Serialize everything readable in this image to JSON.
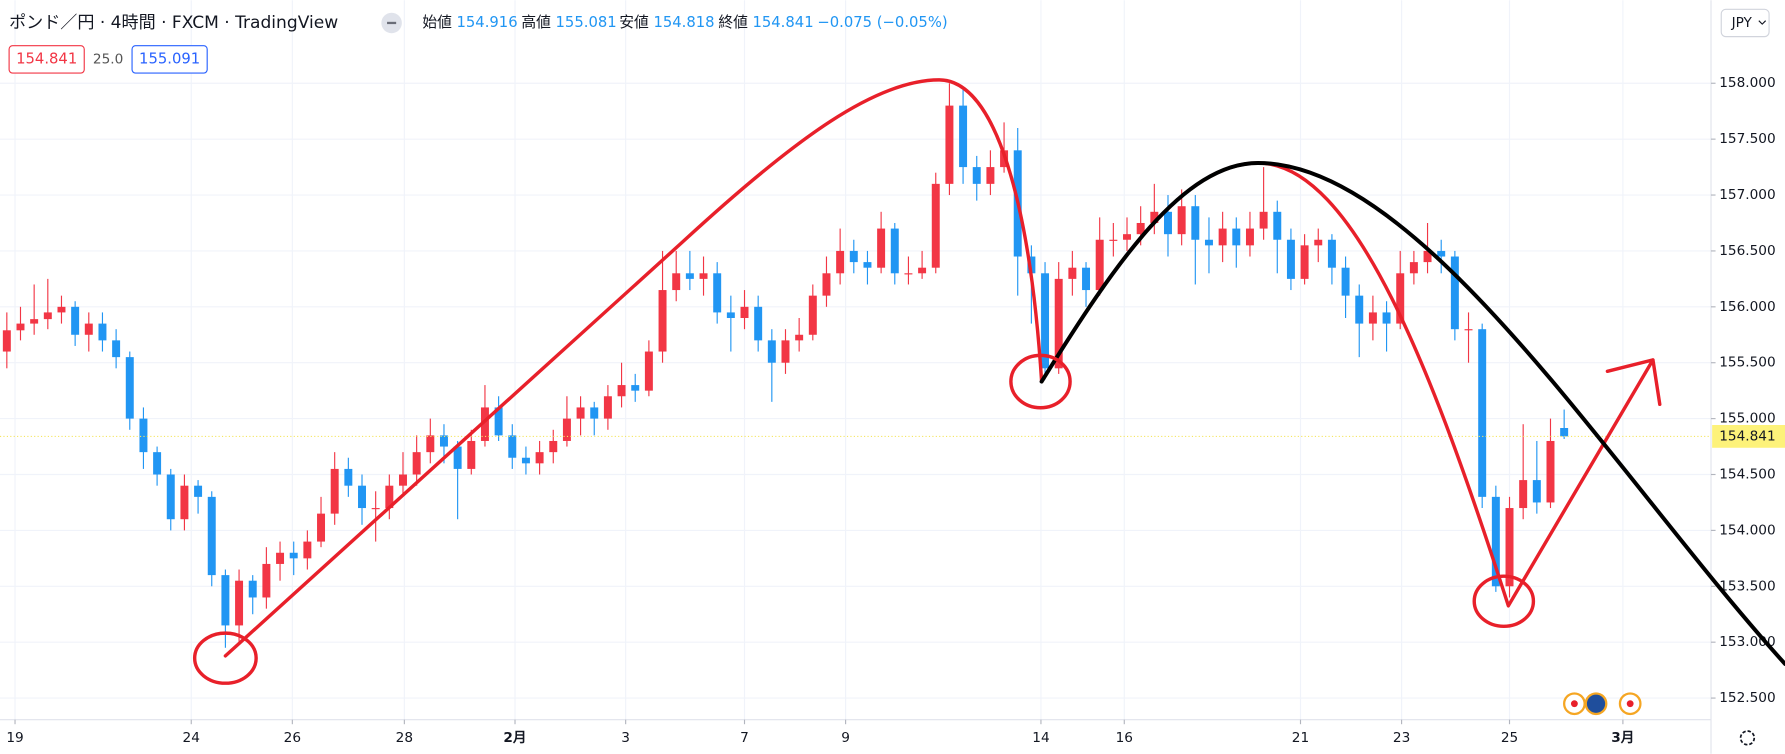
{
  "header": {
    "symbol": "ポンド／円 · 4時間 · FXCM · TradingView",
    "open_label": "始値",
    "high_label": "高値",
    "low_label": "安値",
    "close_label": "終値",
    "change": "−0.075 (−0.05%)",
    "spread": "25.0",
    "ask": 155.091,
    "currency": "JPY"
  },
  "chart_data": {
    "type": "candlestick",
    "up_color": "#f23645",
    "down_color": "#2196f3",
    "grid": true,
    "xlim": [
      -0.5,
      124.75
    ],
    "ylim": [
      152.307,
      158.743
    ],
    "xticks": [
      {
        "value": 0.6,
        "label": "19"
      },
      {
        "value": 13.5,
        "label": "24"
      },
      {
        "value": 20.9,
        "label": "26"
      },
      {
        "value": 29.1,
        "label": "28"
      },
      {
        "value": 37.2,
        "label": "2月"
      },
      {
        "value": 45.3,
        "label": "3"
      },
      {
        "value": 54,
        "label": "7"
      },
      {
        "value": 61.4,
        "label": "9"
      },
      {
        "value": 75.7,
        "label": "14"
      },
      {
        "value": 81.8,
        "label": "16"
      },
      {
        "value": 94.7,
        "label": "21"
      },
      {
        "value": 102.1,
        "label": "23"
      },
      {
        "value": 110,
        "label": "25"
      },
      {
        "value": 118.3,
        "label": "3月"
      }
    ],
    "yticks": [
      {
        "value": 152.5,
        "label": "152.500"
      },
      {
        "value": 153,
        "label": "153.000"
      },
      {
        "value": 153.5,
        "label": "153.500"
      },
      {
        "value": 154,
        "label": "154.000"
      },
      {
        "value": 154.5,
        "label": "154.500"
      },
      {
        "value": 155,
        "label": "155.000"
      },
      {
        "value": 155.5,
        "label": "155.500"
      },
      {
        "value": 156,
        "label": "156.000"
      },
      {
        "value": 156.5,
        "label": "156.500"
      },
      {
        "value": 157,
        "label": "157.000"
      },
      {
        "value": 157.5,
        "label": "157.500"
      },
      {
        "value": 158,
        "label": "158.000"
      }
    ],
    "ohlc": [
      [
        155.6,
        155.95,
        155.45,
        155.79
      ],
      [
        155.79,
        156.0,
        155.7,
        155.85
      ],
      [
        155.85,
        156.2,
        155.75,
        155.89
      ],
      [
        155.89,
        156.25,
        155.8,
        155.95
      ],
      [
        155.95,
        156.1,
        155.85,
        156.0
      ],
      [
        156.0,
        156.05,
        155.65,
        155.75
      ],
      [
        155.75,
        155.95,
        155.6,
        155.85
      ],
      [
        155.85,
        155.95,
        155.6,
        155.7
      ],
      [
        155.7,
        155.8,
        155.45,
        155.55
      ],
      [
        155.55,
        155.6,
        154.9,
        155.0
      ],
      [
        155.0,
        155.1,
        154.55,
        154.7
      ],
      [
        154.7,
        154.75,
        154.4,
        154.5
      ],
      [
        154.5,
        154.55,
        154.0,
        154.1
      ],
      [
        154.1,
        154.5,
        154.0,
        154.4
      ],
      [
        154.4,
        154.45,
        154.15,
        154.3
      ],
      [
        154.3,
        154.35,
        153.5,
        153.6
      ],
      [
        153.6,
        153.65,
        152.95,
        153.15
      ],
      [
        153.15,
        153.65,
        153.0,
        153.55
      ],
      [
        153.55,
        153.6,
        153.25,
        153.4
      ],
      [
        153.4,
        153.85,
        153.3,
        153.7
      ],
      [
        153.7,
        153.9,
        153.55,
        153.8
      ],
      [
        153.8,
        153.9,
        153.6,
        153.75
      ],
      [
        153.75,
        154.0,
        153.65,
        153.9
      ],
      [
        153.9,
        154.3,
        153.85,
        154.15
      ],
      [
        154.15,
        154.7,
        154.05,
        154.55
      ],
      [
        154.55,
        154.65,
        154.3,
        154.4
      ],
      [
        154.4,
        154.5,
        154.05,
        154.2
      ],
      [
        154.2,
        154.35,
        153.9,
        154.2
      ],
      [
        154.2,
        154.5,
        154.1,
        154.4
      ],
      [
        154.4,
        154.7,
        154.3,
        154.5
      ],
      [
        154.5,
        154.85,
        154.4,
        154.7
      ],
      [
        154.7,
        155.0,
        154.6,
        154.85
      ],
      [
        154.85,
        154.95,
        154.6,
        154.75
      ],
      [
        154.75,
        154.8,
        154.1,
        154.55
      ],
      [
        154.55,
        154.9,
        154.5,
        154.8
      ],
      [
        154.8,
        155.3,
        154.75,
        155.1
      ],
      [
        155.1,
        155.2,
        154.8,
        154.85
      ],
      [
        154.85,
        154.95,
        154.55,
        154.65
      ],
      [
        154.65,
        154.75,
        154.5,
        154.6
      ],
      [
        154.6,
        154.8,
        154.5,
        154.7
      ],
      [
        154.7,
        154.9,
        154.6,
        154.8
      ],
      [
        154.8,
        155.2,
        154.75,
        155.0
      ],
      [
        155.0,
        155.2,
        154.85,
        155.1
      ],
      [
        155.1,
        155.15,
        154.85,
        155.0
      ],
      [
        155.0,
        155.3,
        154.9,
        155.2
      ],
      [
        155.2,
        155.5,
        155.1,
        155.3
      ],
      [
        155.3,
        155.4,
        155.15,
        155.25
      ],
      [
        155.25,
        155.7,
        155.2,
        155.6
      ],
      [
        155.6,
        156.5,
        155.5,
        156.15
      ],
      [
        156.15,
        156.5,
        156.05,
        156.3
      ],
      [
        156.3,
        156.5,
        156.15,
        156.25
      ],
      [
        156.25,
        156.45,
        156.1,
        156.3
      ],
      [
        156.3,
        156.4,
        155.85,
        155.95
      ],
      [
        155.95,
        156.1,
        155.6,
        155.9
      ],
      [
        155.9,
        156.15,
        155.8,
        156.0
      ],
      [
        156.0,
        156.1,
        155.6,
        155.7
      ],
      [
        155.7,
        155.8,
        155.15,
        155.5
      ],
      [
        155.5,
        155.8,
        155.4,
        155.7
      ],
      [
        155.7,
        155.9,
        155.6,
        155.75
      ],
      [
        155.75,
        156.2,
        155.7,
        156.1
      ],
      [
        156.1,
        156.45,
        156.0,
        156.3
      ],
      [
        156.3,
        156.7,
        156.2,
        156.5
      ],
      [
        156.5,
        156.6,
        156.3,
        156.4
      ],
      [
        156.4,
        156.5,
        156.2,
        156.35
      ],
      [
        156.35,
        156.85,
        156.3,
        156.7
      ],
      [
        156.7,
        156.75,
        156.2,
        156.3
      ],
      [
        156.3,
        156.45,
        156.2,
        156.3
      ],
      [
        156.3,
        156.5,
        156.25,
        156.35
      ],
      [
        156.35,
        157.2,
        156.3,
        157.1
      ],
      [
        157.1,
        158.0,
        157.0,
        157.8
      ],
      [
        157.8,
        157.95,
        157.1,
        157.25
      ],
      [
        157.25,
        157.35,
        156.95,
        157.1
      ],
      [
        157.1,
        157.4,
        157.0,
        157.25
      ],
      [
        157.25,
        157.65,
        157.2,
        157.4
      ],
      [
        157.4,
        157.6,
        156.1,
        156.45
      ],
      [
        156.45,
        156.55,
        155.85,
        156.3
      ],
      [
        156.3,
        156.4,
        155.35,
        155.45
      ],
      [
        155.45,
        156.4,
        155.4,
        156.25
      ],
      [
        156.25,
        156.5,
        156.1,
        156.35
      ],
      [
        156.35,
        156.4,
        156.0,
        156.15
      ],
      [
        156.15,
        156.8,
        156.1,
        156.6
      ],
      [
        156.6,
        156.75,
        156.45,
        156.6
      ],
      [
        156.6,
        156.8,
        156.5,
        156.65
      ],
      [
        156.65,
        156.9,
        156.55,
        156.75
      ],
      [
        156.75,
        157.1,
        156.65,
        156.85
      ],
      [
        156.85,
        157.0,
        156.45,
        156.65
      ],
      [
        156.65,
        157.05,
        156.55,
        156.9
      ],
      [
        156.9,
        157.0,
        156.2,
        156.6
      ],
      [
        156.6,
        156.8,
        156.3,
        156.55
      ],
      [
        156.55,
        156.85,
        156.4,
        156.7
      ],
      [
        156.7,
        156.8,
        156.35,
        156.55
      ],
      [
        156.55,
        156.85,
        156.45,
        156.7
      ],
      [
        156.7,
        157.25,
        156.6,
        156.85
      ],
      [
        156.85,
        156.95,
        156.3,
        156.6
      ],
      [
        156.6,
        156.7,
        156.15,
        156.25
      ],
      [
        156.25,
        156.65,
        156.2,
        156.55
      ],
      [
        156.55,
        156.7,
        156.4,
        156.6
      ],
      [
        156.6,
        156.65,
        156.2,
        156.35
      ],
      [
        156.35,
        156.45,
        155.9,
        156.1
      ],
      [
        156.1,
        156.2,
        155.55,
        155.85
      ],
      [
        155.85,
        156.1,
        155.7,
        155.95
      ],
      [
        155.95,
        156.05,
        155.6,
        155.85
      ],
      [
        155.85,
        156.5,
        155.8,
        156.3
      ],
      [
        156.3,
        156.5,
        156.2,
        156.4
      ],
      [
        156.4,
        156.75,
        156.3,
        156.5
      ],
      [
        156.5,
        156.6,
        156.3,
        156.45
      ],
      [
        156.45,
        156.5,
        155.7,
        155.8
      ],
      [
        155.8,
        155.95,
        155.5,
        155.8
      ],
      [
        155.8,
        155.85,
        154.2,
        154.3
      ],
      [
        154.3,
        154.4,
        153.45,
        153.5
      ],
      [
        153.5,
        154.3,
        153.4,
        154.2
      ],
      [
        154.2,
        154.95,
        154.1,
        154.45
      ],
      [
        154.45,
        154.8,
        154.15,
        154.25
      ],
      [
        154.25,
        155.0,
        154.2,
        154.8
      ],
      [
        154.916,
        155.081,
        154.818,
        154.841
      ]
    ]
  }
}
